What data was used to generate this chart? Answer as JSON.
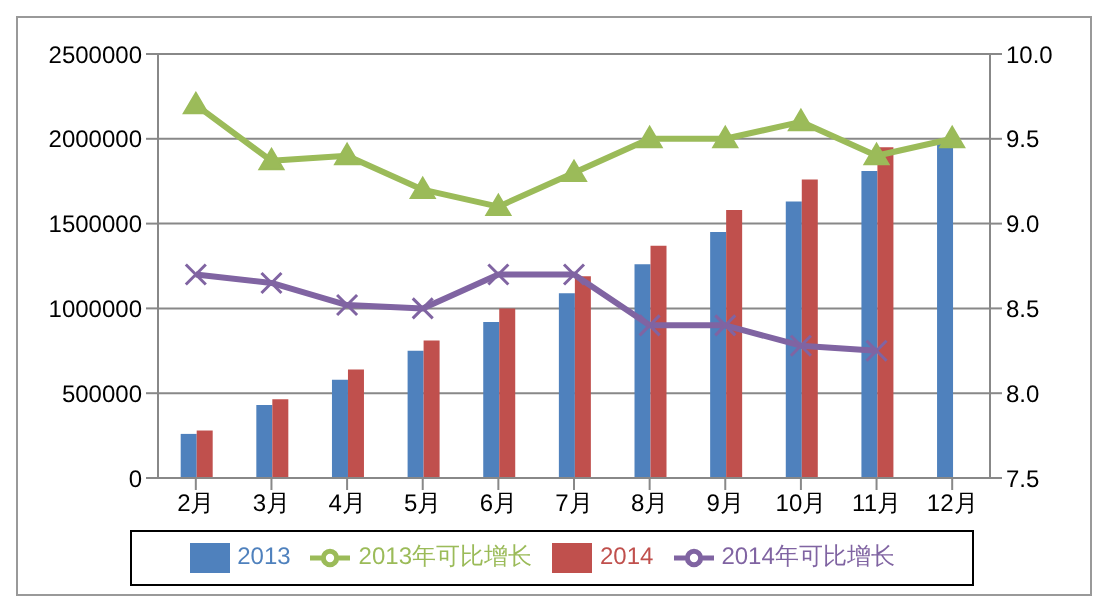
{
  "chart_data": {
    "type": "bar",
    "categories": [
      "2月",
      "3月",
      "4月",
      "5月",
      "6月",
      "7月",
      "8月",
      "9月",
      "10月",
      "11月",
      "12月"
    ],
    "series": [
      {
        "name": "2013",
        "color": "#4f81bd",
        "values": [
          260000,
          430000,
          580000,
          750000,
          920000,
          1090000,
          1260000,
          1450000,
          1630000,
          1810000,
          1980000
        ]
      },
      {
        "name": "2014",
        "color": "#c0504d",
        "values": [
          280000,
          465000,
          640000,
          810000,
          1000000,
          1190000,
          1370000,
          1580000,
          1760000,
          1950000,
          null
        ]
      },
      {
        "name": "2013年可比增长",
        "type": "line",
        "axis": "y2",
        "marker": "triangle",
        "color": "#9bbb59",
        "values": [
          9.7,
          9.37,
          9.4,
          9.2,
          9.1,
          9.3,
          9.5,
          9.5,
          9.6,
          9.4,
          9.5
        ]
      },
      {
        "name": "2014年可比增长",
        "type": "line",
        "axis": "y2",
        "marker": "cross",
        "color": "#8064a2",
        "values": [
          8.7,
          8.65,
          8.52,
          8.5,
          8.7,
          8.7,
          8.4,
          8.4,
          8.28,
          8.25,
          null
        ]
      }
    ],
    "ylim": [
      0,
      2500000
    ],
    "yticks": [
      0,
      500000,
      1000000,
      1500000,
      2000000,
      2500000
    ],
    "y2lim": [
      7.5,
      10
    ],
    "y2ticks": [
      {
        "value": 7.5,
        "label": "7.5"
      },
      {
        "value": 8,
        "label": "8.0"
      },
      {
        "value": 8.5,
        "label": "8.5"
      },
      {
        "value": 9,
        "label": "9.0"
      },
      {
        "value": 9.5,
        "label": "9.5"
      },
      {
        "value": 10,
        "label": "10.0"
      }
    ],
    "grid": "y",
    "legend": "bottom"
  }
}
